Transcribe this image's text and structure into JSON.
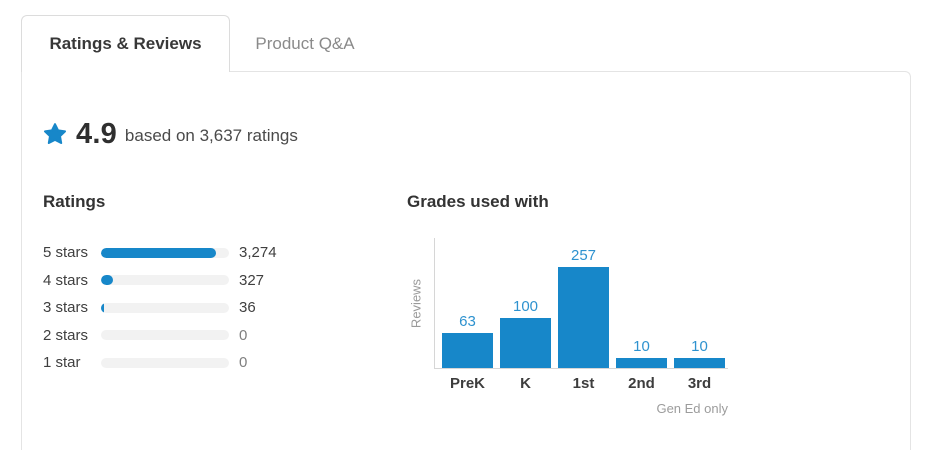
{
  "tabs": [
    {
      "label": "Ratings & Reviews",
      "active": true
    },
    {
      "label": "Product Q&A",
      "active": false
    }
  ],
  "summary": {
    "average_rating": "4.9",
    "caption": "based on 3,637 ratings"
  },
  "ratings_breakdown": {
    "heading": "Ratings",
    "total_ratings": 3637,
    "rows": [
      {
        "label": "5 stars",
        "count": 3274,
        "count_display": "3,274"
      },
      {
        "label": "4 stars",
        "count": 327,
        "count_display": "327"
      },
      {
        "label": "3 stars",
        "count": 36,
        "count_display": "36"
      },
      {
        "label": "2 stars",
        "count": 0,
        "count_display": "0"
      },
      {
        "label": "1 star",
        "count": 0,
        "count_display": "0"
      }
    ]
  },
  "chart_data": {
    "type": "bar",
    "title": "Grades used with",
    "categories": [
      "PreK",
      "K",
      "1st",
      "2nd",
      "3rd"
    ],
    "values": [
      63,
      100,
      257,
      10,
      10
    ],
    "xlabel": "",
    "ylabel": "Reviews",
    "ylim": [
      0,
      257
    ],
    "grid": false,
    "legend": false,
    "value_labels": true,
    "annotation": "Gen Ed only",
    "bar_color": "#1787c9"
  },
  "colors": {
    "brand_blue": "#1787c9",
    "chart_value_blue": "#2e92cf",
    "bar_track_gray": "#f2f2f2"
  },
  "icons": {
    "star": "star-icon"
  }
}
